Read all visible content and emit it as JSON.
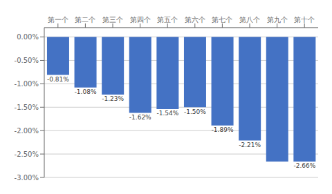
{
  "chart_data": {
    "type": "bar",
    "categories": [
      "第一个",
      "第二个",
      "第三个",
      "第四个",
      "第五个",
      "第六个",
      "第七个",
      "第八个",
      "第九个",
      "第十个"
    ],
    "values": [
      -0.0081,
      -0.0108,
      -0.0123,
      -0.0162,
      -0.0154,
      -0.015,
      -0.0189,
      -0.0221,
      -0.0266,
      -0.0266
    ],
    "value_labels": [
      "-0.81%",
      "-1.08%",
      "-1.23%",
      "-1.62%",
      "-1.54%",
      "-1.50%",
      "-1.89%",
      "-2.21%",
      null,
      "-2.66%"
    ],
    "color": "#4472C4",
    "ylim": [
      -0.03,
      0.002
    ],
    "yticks": [
      {
        "value": 0.0,
        "label": "0.00%"
      },
      {
        "value": -0.005,
        "label": "-0.50%"
      },
      {
        "value": -0.01,
        "label": "-1.00%"
      },
      {
        "value": -0.015,
        "label": "-1.50%"
      },
      {
        "value": -0.02,
        "label": "-2.00%"
      },
      {
        "value": -0.025,
        "label": "-2.50%"
      },
      {
        "value": -0.03,
        "label": "-3.00%"
      }
    ],
    "grid": true,
    "data_labels": true
  }
}
